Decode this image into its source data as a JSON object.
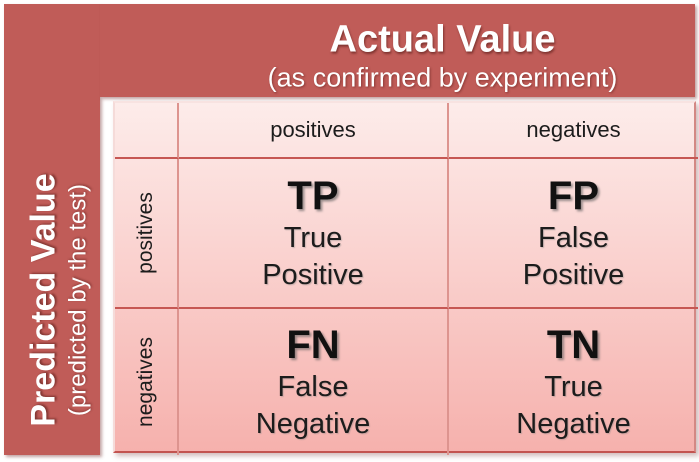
{
  "colors": {
    "band_red": "#c05c58",
    "table_gradient_top": "#fdecea",
    "table_gradient_bottom": "#f6b1ad",
    "vertical_border": "#dd948f",
    "horizontal_border": "#c65753",
    "text_dark": "#1c1c1c",
    "text_light": "#ffffff"
  },
  "top_header": {
    "title": "Actual Value",
    "subtitle": "(as confirmed by experiment)"
  },
  "left_header": {
    "title": "Predicted Value",
    "subtitle": "(predicted by the test)"
  },
  "matrix": {
    "column_headers": [
      "positives",
      "negatives"
    ],
    "row_headers": [
      "positives",
      "negatives"
    ],
    "cells": {
      "tp": {
        "abbr": "TP",
        "word1": "True",
        "word2": "Positive"
      },
      "fp": {
        "abbr": "FP",
        "word1": "False",
        "word2": "Positive"
      },
      "fn": {
        "abbr": "FN",
        "word1": "False",
        "word2": "Negative"
      },
      "tn": {
        "abbr": "TN",
        "word1": "True",
        "word2": "Negative"
      }
    }
  }
}
